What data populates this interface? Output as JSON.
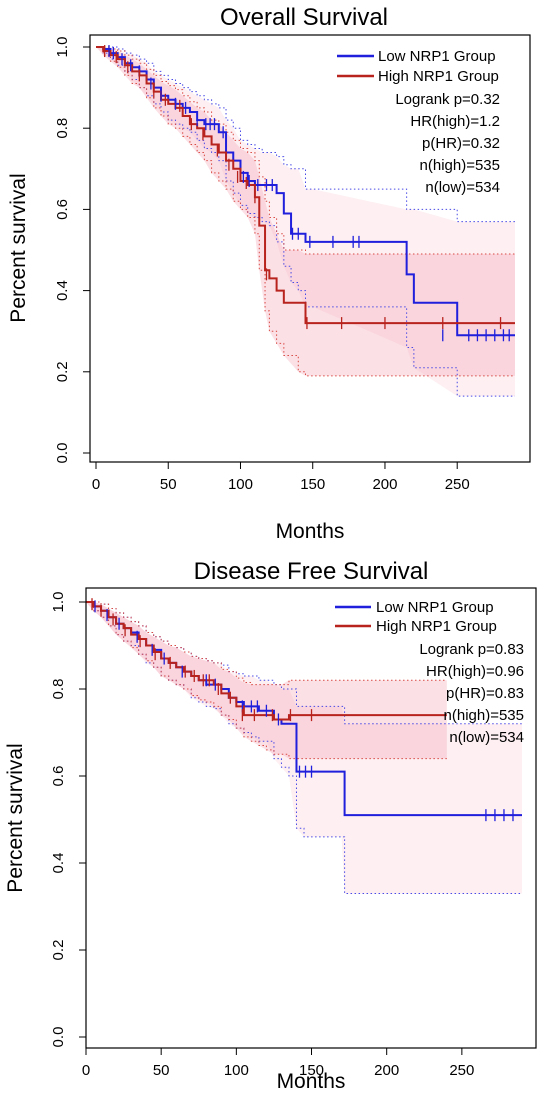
{
  "colors": {
    "low": "#1f1fdc",
    "high": "#b8231e",
    "ci_low": "#4a4ae6",
    "ci_high": "#d94a44",
    "band": "#f4a6b8"
  },
  "chart_data": [
    {
      "type": "line",
      "title": "Overall Survival",
      "xlabel": "Months",
      "ylabel": "Percent survival",
      "xlim": [
        0,
        290
      ],
      "ylim": [
        0,
        1.0
      ],
      "x_ticks": [
        0,
        50,
        100,
        150,
        200,
        250
      ],
      "y_ticks": [
        0.0,
        0.2,
        0.4,
        0.6,
        0.8,
        1.0
      ],
      "y_tick_labels": [
        "0.0",
        "0.2",
        "0.4",
        "0.6",
        "0.8",
        "1.0"
      ],
      "legend": {
        "position": "top-right",
        "entries": [
          {
            "name": "Low NRP1 Group",
            "color": "#1f1fdc"
          },
          {
            "name": "High NRP1 Group",
            "color": "#b8231e"
          }
        ]
      },
      "stats": [
        "Logrank p=0.32",
        "HR(high)=1.2",
        "p(HR)=0.32",
        "n(high)=535",
        "n(low)=534"
      ],
      "series": [
        {
          "name": "Low NRP1 Group",
          "color": "#1f1fdc",
          "x": [
            0,
            5,
            10,
            15,
            20,
            25,
            30,
            35,
            40,
            45,
            50,
            55,
            60,
            65,
            70,
            75,
            80,
            85,
            90,
            95,
            100,
            105,
            110,
            115,
            120,
            125,
            130,
            135,
            140,
            145,
            150,
            215,
            220,
            250,
            290
          ],
          "y": [
            1.0,
            0.995,
            0.985,
            0.975,
            0.96,
            0.95,
            0.94,
            0.92,
            0.9,
            0.88,
            0.87,
            0.86,
            0.85,
            0.84,
            0.82,
            0.81,
            0.81,
            0.79,
            0.74,
            0.72,
            0.69,
            0.67,
            0.66,
            0.66,
            0.66,
            0.64,
            0.59,
            0.54,
            0.54,
            0.52,
            0.52,
            0.44,
            0.37,
            0.29,
            0.29
          ],
          "ci_upper": [
            1.0,
            1.0,
            1.0,
            0.995,
            0.985,
            0.98,
            0.97,
            0.96,
            0.94,
            0.93,
            0.92,
            0.91,
            0.9,
            0.89,
            0.88,
            0.87,
            0.86,
            0.85,
            0.82,
            0.8,
            0.77,
            0.76,
            0.75,
            0.74,
            0.74,
            0.73,
            0.71,
            0.7,
            0.7,
            0.65,
            0.65,
            0.6,
            0.6,
            0.57,
            0.57
          ],
          "ci_lower": [
            1.0,
            0.985,
            0.97,
            0.955,
            0.94,
            0.92,
            0.9,
            0.88,
            0.86,
            0.84,
            0.82,
            0.81,
            0.8,
            0.79,
            0.77,
            0.75,
            0.74,
            0.72,
            0.67,
            0.64,
            0.61,
            0.59,
            0.58,
            0.57,
            0.56,
            0.52,
            0.46,
            0.42,
            0.4,
            0.36,
            0.36,
            0.26,
            0.21,
            0.14,
            0.14
          ]
        },
        {
          "name": "High NRP1 Group",
          "color": "#b8231e",
          "x": [
            0,
            5,
            10,
            15,
            20,
            25,
            30,
            35,
            40,
            45,
            50,
            55,
            60,
            65,
            70,
            75,
            80,
            85,
            90,
            95,
            100,
            105,
            110,
            113,
            117,
            120,
            125,
            130,
            140,
            145,
            290
          ],
          "y": [
            1.0,
            0.99,
            0.98,
            0.97,
            0.955,
            0.94,
            0.93,
            0.91,
            0.89,
            0.87,
            0.86,
            0.85,
            0.83,
            0.81,
            0.8,
            0.78,
            0.76,
            0.74,
            0.72,
            0.7,
            0.67,
            0.66,
            0.63,
            0.56,
            0.45,
            0.43,
            0.4,
            0.37,
            0.37,
            0.32,
            0.32
          ],
          "ci_upper": [
            1.0,
            1.0,
            0.995,
            0.99,
            0.98,
            0.97,
            0.96,
            0.945,
            0.93,
            0.915,
            0.905,
            0.895,
            0.88,
            0.865,
            0.85,
            0.84,
            0.82,
            0.81,
            0.79,
            0.77,
            0.75,
            0.74,
            0.72,
            0.68,
            0.62,
            0.58,
            0.54,
            0.5,
            0.5,
            0.49,
            0.49
          ],
          "ci_lower": [
            1.0,
            0.98,
            0.965,
            0.95,
            0.93,
            0.91,
            0.9,
            0.875,
            0.85,
            0.83,
            0.81,
            0.8,
            0.78,
            0.76,
            0.74,
            0.72,
            0.69,
            0.67,
            0.65,
            0.62,
            0.6,
            0.58,
            0.54,
            0.45,
            0.35,
            0.3,
            0.27,
            0.24,
            0.2,
            0.19,
            0.19
          ]
        }
      ]
    },
    {
      "type": "line",
      "title": "Disease Free Survival",
      "xlabel": "Months",
      "ylabel": "Percent survival",
      "xlim": [
        0,
        290
      ],
      "ylim": [
        0,
        1.0
      ],
      "x_ticks": [
        0,
        50,
        100,
        150,
        200,
        250
      ],
      "y_ticks": [
        0.0,
        0.2,
        0.4,
        0.6,
        0.8,
        1.0
      ],
      "y_tick_labels": [
        "0.0",
        "0.2",
        "0.4",
        "0.6",
        "0.8",
        "1.0"
      ],
      "legend": {
        "position": "top-right",
        "entries": [
          {
            "name": "Low NRP1 Group",
            "color": "#1f1fdc"
          },
          {
            "name": "High NRP1 Group",
            "color": "#b8231e"
          }
        ]
      },
      "stats": [
        "Logrank p=0.83",
        "HR(high)=0.96",
        "p(HR)=0.83",
        "n(high)=535",
        "n(low)=534"
      ],
      "series": [
        {
          "name": "Low NRP1 Group",
          "color": "#1f1fdc",
          "x": [
            0,
            5,
            10,
            15,
            20,
            25,
            30,
            35,
            40,
            45,
            50,
            55,
            60,
            65,
            70,
            75,
            80,
            85,
            90,
            95,
            100,
            105,
            110,
            115,
            120,
            125,
            130,
            135,
            140,
            145,
            170,
            172,
            290
          ],
          "y": [
            1.0,
            0.99,
            0.98,
            0.965,
            0.95,
            0.94,
            0.93,
            0.915,
            0.9,
            0.89,
            0.87,
            0.86,
            0.85,
            0.84,
            0.83,
            0.82,
            0.81,
            0.81,
            0.8,
            0.78,
            0.77,
            0.76,
            0.76,
            0.75,
            0.75,
            0.73,
            0.72,
            0.72,
            0.61,
            0.61,
            0.61,
            0.51,
            0.51
          ],
          "ci_upper": [
            1.0,
            1.0,
            0.995,
            0.985,
            0.975,
            0.965,
            0.955,
            0.945,
            0.93,
            0.92,
            0.91,
            0.9,
            0.895,
            0.885,
            0.875,
            0.87,
            0.865,
            0.86,
            0.855,
            0.84,
            0.835,
            0.83,
            0.83,
            0.82,
            0.82,
            0.81,
            0.8,
            0.8,
            0.76,
            0.76,
            0.76,
            0.72,
            0.72
          ],
          "ci_lower": [
            1.0,
            0.98,
            0.965,
            0.945,
            0.925,
            0.91,
            0.9,
            0.88,
            0.86,
            0.85,
            0.83,
            0.82,
            0.81,
            0.8,
            0.78,
            0.77,
            0.76,
            0.755,
            0.74,
            0.72,
            0.71,
            0.7,
            0.69,
            0.68,
            0.68,
            0.64,
            0.62,
            0.6,
            0.48,
            0.46,
            0.46,
            0.33,
            0.33
          ]
        },
        {
          "name": "High NRP1 Group",
          "color": "#b8231e",
          "x": [
            0,
            5,
            10,
            15,
            20,
            25,
            30,
            35,
            40,
            45,
            50,
            55,
            60,
            65,
            70,
            75,
            80,
            85,
            90,
            95,
            100,
            105,
            110,
            115,
            120,
            125,
            130,
            135,
            140,
            240
          ],
          "y": [
            1.0,
            0.99,
            0.98,
            0.965,
            0.95,
            0.94,
            0.925,
            0.915,
            0.9,
            0.885,
            0.87,
            0.86,
            0.85,
            0.84,
            0.83,
            0.82,
            0.82,
            0.81,
            0.79,
            0.78,
            0.76,
            0.74,
            0.74,
            0.74,
            0.74,
            0.73,
            0.73,
            0.74,
            0.74,
            0.74
          ],
          "ci_upper": [
            1.0,
            1.0,
            0.995,
            0.985,
            0.975,
            0.965,
            0.955,
            0.945,
            0.93,
            0.92,
            0.91,
            0.9,
            0.895,
            0.885,
            0.875,
            0.87,
            0.865,
            0.86,
            0.845,
            0.84,
            0.825,
            0.815,
            0.81,
            0.81,
            0.81,
            0.81,
            0.81,
            0.82,
            0.82,
            0.82
          ],
          "ci_lower": [
            1.0,
            0.98,
            0.965,
            0.945,
            0.925,
            0.91,
            0.895,
            0.88,
            0.865,
            0.85,
            0.83,
            0.82,
            0.81,
            0.8,
            0.785,
            0.775,
            0.77,
            0.76,
            0.74,
            0.73,
            0.71,
            0.69,
            0.68,
            0.67,
            0.66,
            0.65,
            0.65,
            0.64,
            0.64,
            0.64
          ]
        }
      ]
    }
  ]
}
